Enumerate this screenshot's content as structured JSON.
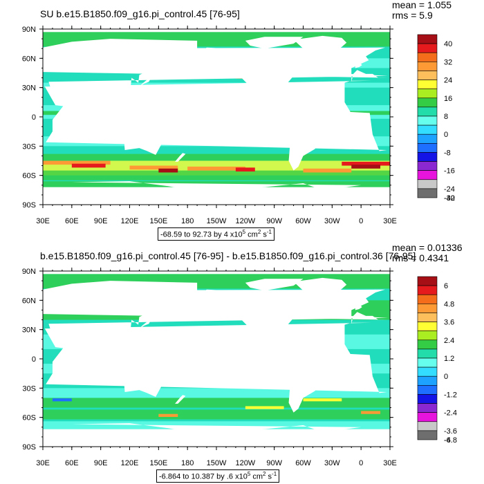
{
  "panels": [
    {
      "title": "SU b.e15.B1850.f09_g16.pi_control.45 [76-95]",
      "stats": {
        "mean": "mean = 1.055",
        "rms": "rms = 5.9"
      },
      "range": {
        "lead": "-68.59 to 92.73 by 4 x10",
        "exp": "5",
        "mid": " cm",
        "exp2": "2",
        "mid2": " s",
        "exp3": "-1"
      },
      "levels": [
        "40",
        "32",
        "24",
        "16",
        "8",
        "0",
        "-8",
        "-16",
        "-24",
        "-32",
        "-40"
      ]
    },
    {
      "title": "b.e15.B1850.f09_g16.pi_control.45 [76-95] - b.e15.B1850.f09_g16.pi_control.36 [76-95]",
      "stats": {
        "mean": "mean = 0.01336",
        "rms": "rms = 0.4341"
      },
      "range": {
        "lead": "-6.864 to 10.387 by .6 x10",
        "exp": "5",
        "mid": " cm",
        "exp2": "2",
        "mid2": " s",
        "exp3": "-1"
      },
      "levels": [
        "6",
        "4.8",
        "3.6",
        "2.4",
        "1.2",
        "0",
        "-1.2",
        "-2.4",
        "-3.6",
        "-4.8",
        "-6"
      ]
    }
  ],
  "axes": {
    "lat_labels": [
      "90N",
      "60N",
      "30N",
      "0",
      "30S",
      "60S",
      "90S"
    ],
    "lon_labels": [
      "30E",
      "60E",
      "90E",
      "120E",
      "150E",
      "180",
      "150W",
      "120W",
      "90W",
      "60W",
      "30W",
      "0",
      "30E"
    ]
  },
  "colorbar_colors": [
    "#a50f15",
    "#e41a1c",
    "#f46d1b",
    "#fd9a35",
    "#fdbf5b",
    "#ffff33",
    "#aaee22",
    "#33cc44",
    "#22ddaa",
    "#66ffee",
    "#33ddff",
    "#1ea2ff",
    "#1e6eff",
    "#1414e6",
    "#8c28d2",
    "#e614dc",
    "#c8c8c8",
    "#6e6e6e"
  ],
  "map_colors": {
    "base": "#22ddbb",
    "land": "#ffffff",
    "green": "#33cc44",
    "light": "#66ffee",
    "yellow": "#ffff33",
    "orange": "#fd9a35",
    "red": "#e41a1c",
    "darkred": "#a50f15",
    "blue": "#1e6eff",
    "navy": "#1414e6"
  }
}
